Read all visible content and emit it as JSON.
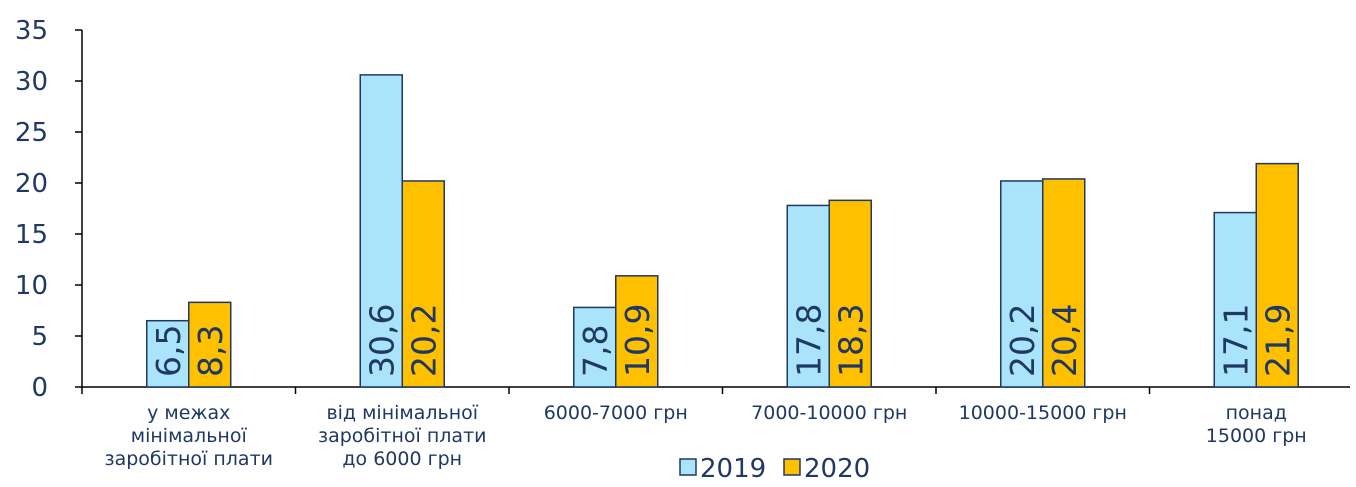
{
  "chart_data": {
    "type": "bar",
    "categories": [
      [
        "у межах",
        "мінімальної",
        "заробітної плати"
      ],
      [
        "від мінімальної",
        "заробітної плати",
        "до 6000 грн"
      ],
      [
        "6000-7000 грн"
      ],
      [
        "7000-10000 грн"
      ],
      [
        "10000-15000 грн"
      ],
      [
        "понад",
        "15000 грн"
      ]
    ],
    "series": [
      {
        "name": "2019",
        "values": [
          6.5,
          30.6,
          7.8,
          17.8,
          20.2,
          17.1
        ],
        "labels": [
          "6,5",
          "30,6",
          "7,8",
          "17,8",
          "20,2",
          "17,1"
        ],
        "color": "#a9e4fa"
      },
      {
        "name": "2020",
        "values": [
          8.3,
          20.2,
          10.9,
          18.3,
          20.4,
          21.9
        ],
        "labels": [
          "8,3",
          "20,2",
          "10,9",
          "18,3",
          "20,4",
          "21,9"
        ],
        "color": "#ffc000"
      }
    ],
    "ylim": [
      0,
      35
    ],
    "yticks": [
      0,
      5,
      10,
      15,
      20,
      25,
      30,
      35
    ],
    "title": "",
    "xlabel": "",
    "ylabel": "",
    "grid": false,
    "legend": "bottom-center",
    "colors": {
      "text": "#1f3864",
      "axis": "#000000",
      "bar_border": "#1f3864"
    }
  }
}
